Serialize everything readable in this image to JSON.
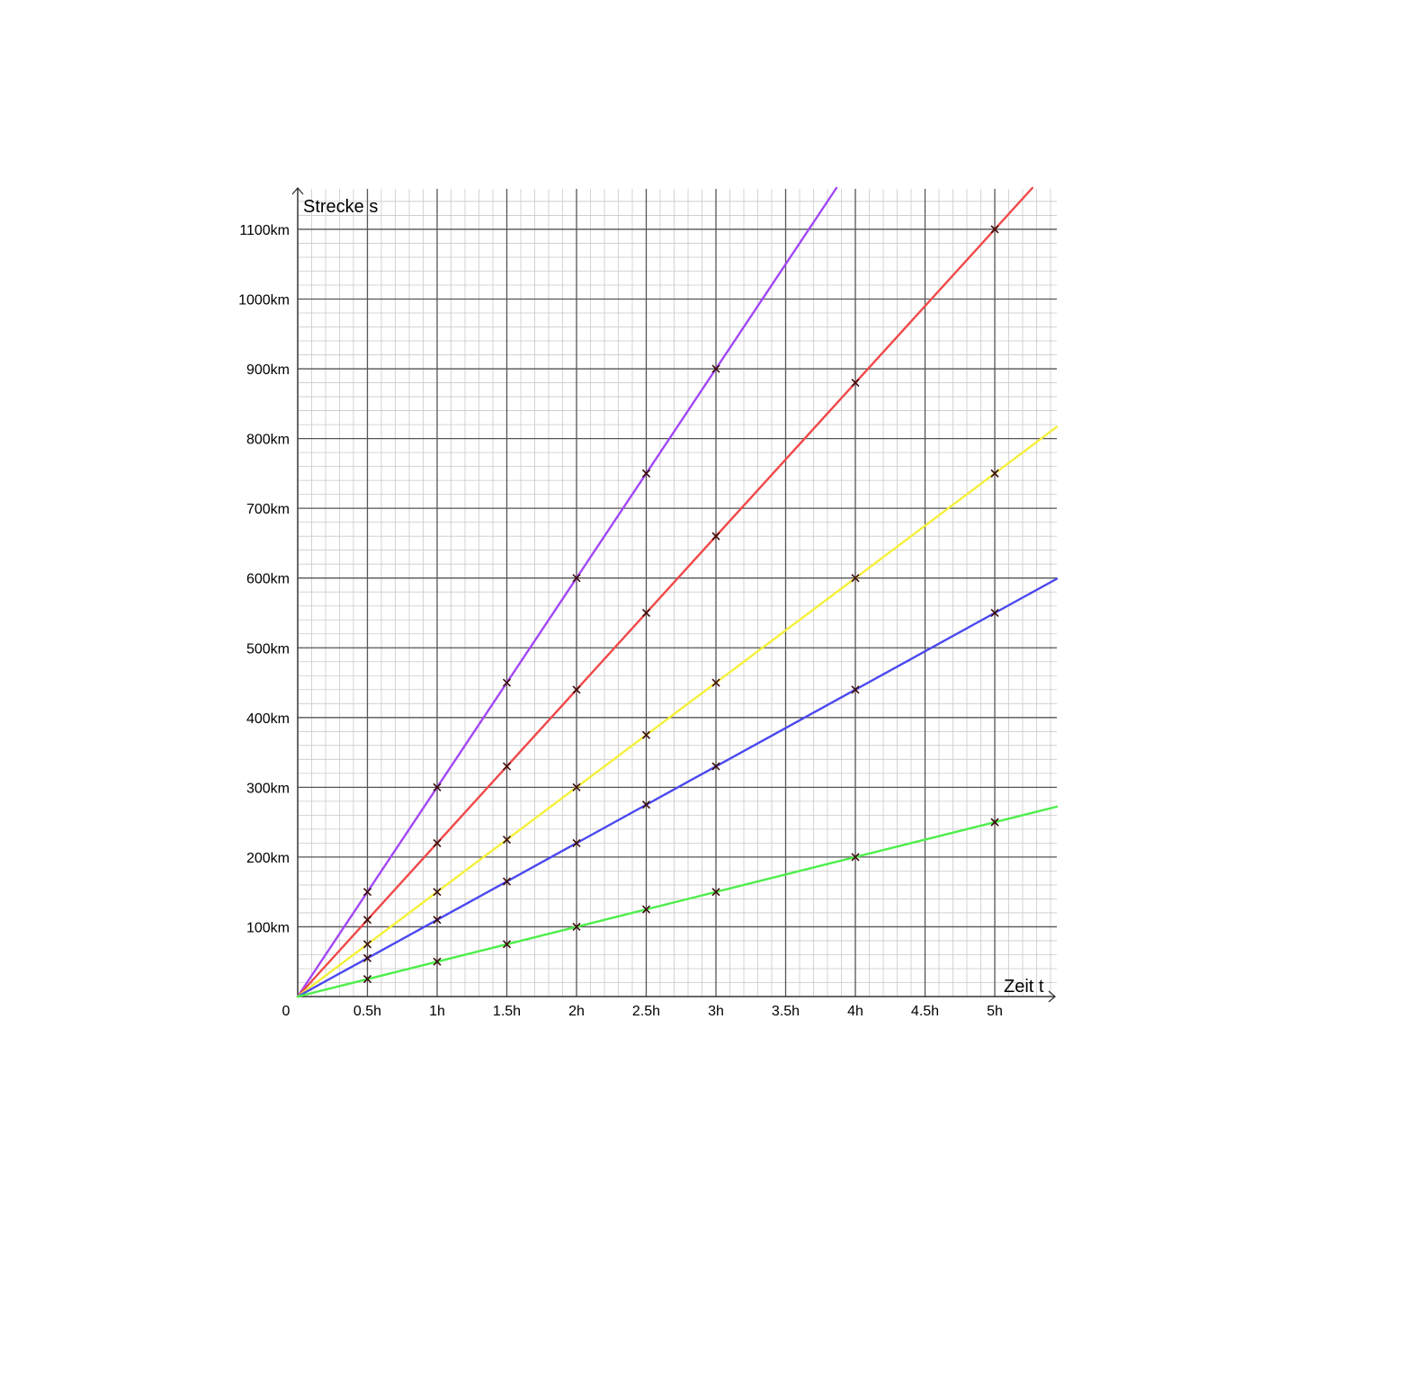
{
  "chart_data": {
    "type": "line",
    "xlabel": "Zeit t",
    "ylabel": "Strecke s",
    "origin_label": "0",
    "xlim": [
      0,
      5.45
    ],
    "ylim": [
      0,
      1160
    ],
    "x_ticks": [
      0.5,
      1,
      1.5,
      2,
      2.5,
      3,
      3.5,
      4,
      4.5,
      5
    ],
    "x_tick_labels": [
      "0.5h",
      "1h",
      "1.5h",
      "2h",
      "2.5h",
      "3h",
      "3.5h",
      "4h",
      "4.5h",
      "5h"
    ],
    "y_ticks": [
      100,
      200,
      300,
      400,
      500,
      600,
      700,
      800,
      900,
      1000,
      1100
    ],
    "y_tick_labels": [
      "100km",
      "200km",
      "300km",
      "400km",
      "500km",
      "600km",
      "700km",
      "800km",
      "900km",
      "1000km",
      "1100km"
    ],
    "grid": true,
    "minor_grid_step_x": 0.1,
    "minor_grid_step_y": 20,
    "series": [
      {
        "color": "#a347f5",
        "slope": 300,
        "points": [
          [
            0.5,
            150
          ],
          [
            1,
            300
          ],
          [
            1.5,
            450
          ],
          [
            2,
            600
          ],
          [
            2.5,
            750
          ],
          [
            3,
            900
          ]
        ]
      },
      {
        "color": "#f04848",
        "slope": 220,
        "points": [
          [
            0.5,
            110
          ],
          [
            1,
            220
          ],
          [
            1.5,
            330
          ],
          [
            2,
            440
          ],
          [
            2.5,
            550
          ],
          [
            3,
            660
          ],
          [
            4,
            880
          ],
          [
            5,
            1100
          ]
        ]
      },
      {
        "color": "#f5f03a",
        "slope": 150,
        "points": [
          [
            0.5,
            75
          ],
          [
            1,
            150
          ],
          [
            1.5,
            225
          ],
          [
            2,
            300
          ],
          [
            2.5,
            375
          ],
          [
            3,
            450
          ],
          [
            4,
            600
          ],
          [
            5,
            750
          ]
        ]
      },
      {
        "color": "#4a48ef",
        "slope": 110,
        "points": [
          [
            0.5,
            55
          ],
          [
            1,
            110
          ],
          [
            1.5,
            165
          ],
          [
            2,
            220
          ],
          [
            2.5,
            275
          ],
          [
            3,
            330
          ],
          [
            4,
            440
          ],
          [
            5,
            550
          ]
        ]
      },
      {
        "color": "#4cef4a",
        "slope": 50,
        "points": [
          [
            0.5,
            25
          ],
          [
            1,
            50
          ],
          [
            1.5,
            75
          ],
          [
            2,
            100
          ],
          [
            2.5,
            125
          ],
          [
            3,
            150
          ],
          [
            4,
            200
          ],
          [
            5,
            250
          ]
        ]
      }
    ]
  }
}
